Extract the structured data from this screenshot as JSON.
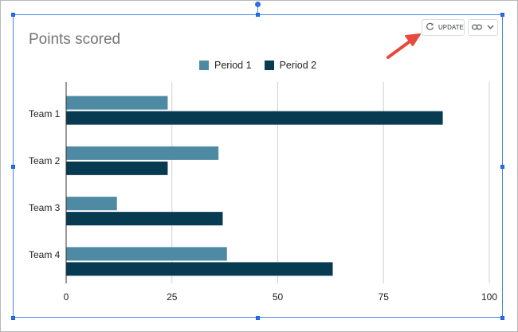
{
  "toolbar": {
    "update_label": "UPDATE"
  },
  "colors": {
    "period1": "#4e8aa3",
    "period2": "#073b52",
    "arrow": "#e84a3d",
    "selection": "#4a86e8",
    "grid": "#d0d0d0"
  },
  "chart_data": {
    "type": "bar",
    "orientation": "horizontal",
    "title": "Points scored",
    "categories": [
      "Team 1",
      "Team 2",
      "Team 3",
      "Team 4"
    ],
    "series": [
      {
        "name": "Period 1",
        "values": [
          24,
          36,
          12,
          38
        ]
      },
      {
        "name": "Period 2",
        "values": [
          89,
          24,
          37,
          63
        ]
      }
    ],
    "xticks": [
      0,
      25,
      50,
      75,
      100
    ],
    "xlim": [
      0,
      100
    ],
    "grid": true,
    "legend_position": "top"
  }
}
